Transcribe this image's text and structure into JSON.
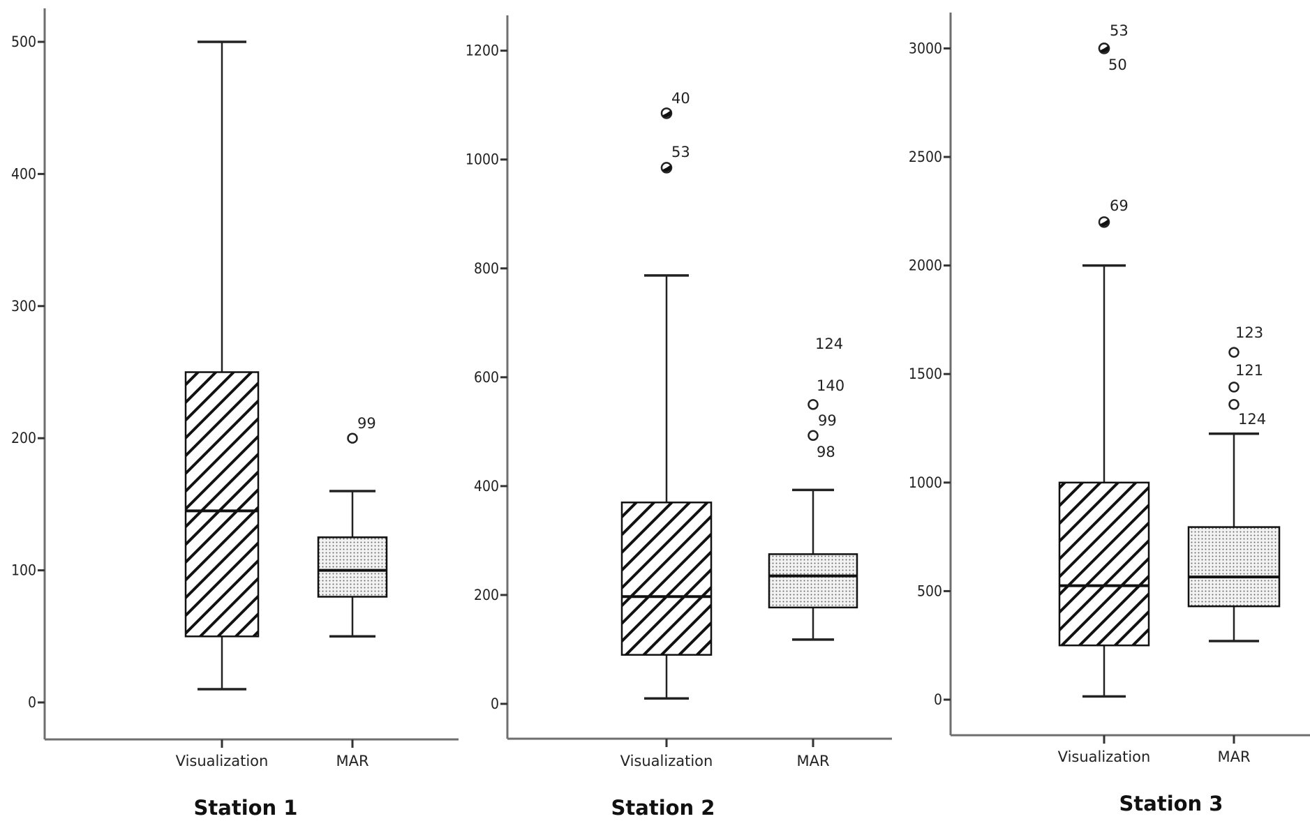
{
  "figure": {
    "panels": [
      {
        "title": "Station 1",
        "categories": [
          "Visualization",
          "MAR"
        ]
      },
      {
        "title": "Station 2",
        "categories": [
          "Visualization",
          "MAR"
        ]
      },
      {
        "title": "Station 3",
        "categories": [
          "Visualization",
          "MAR"
        ]
      }
    ]
  },
  "chart_data": [
    {
      "type": "boxplot",
      "title": "Station 1",
      "xlabel": "",
      "ylabel": "",
      "categories": [
        "Visualization",
        "MAR"
      ],
      "yticks": [
        0,
        100,
        200,
        300,
        400,
        500
      ],
      "ylim": [
        -30,
        530
      ],
      "grid": false,
      "series": [
        {
          "name": "Visualization",
          "fill": "diagonal-hatch",
          "whisker_low": 10,
          "q1": 50,
          "median": 145,
          "q3": 250,
          "whisker_high": 500,
          "outliers": []
        },
        {
          "name": "MAR",
          "fill": "dotted",
          "whisker_low": 50,
          "q1": 80,
          "median": 100,
          "q3": 125,
          "whisker_high": 160,
          "outliers": [
            {
              "value": 200,
              "label": "99",
              "style": "open"
            }
          ]
        }
      ]
    },
    {
      "type": "boxplot",
      "title": "Station 2",
      "xlabel": "",
      "ylabel": "",
      "categories": [
        "Visualization",
        "MAR"
      ],
      "yticks": [
        0,
        200,
        400,
        600,
        800,
        1000,
        1200
      ],
      "ylim": [
        -65,
        1260
      ],
      "grid": false,
      "series": [
        {
          "name": "Visualization",
          "fill": "diagonal-hatch",
          "whisker_low": 10,
          "q1": 90,
          "median": 197,
          "q3": 370,
          "whisker_high": 787,
          "outliers": [
            {
              "value": 1085,
              "label": "40",
              "style": "extreme"
            },
            {
              "value": 985,
              "label": "53",
              "style": "extreme"
            }
          ]
        },
        {
          "name": "MAR",
          "fill": "dotted",
          "whisker_low": 118,
          "q1": 177,
          "median": 235,
          "q3": 275,
          "whisker_high": 393,
          "outliers": [
            {
              "value": 550,
              "label": "140",
              "style": "open"
            },
            {
              "value": 493,
              "label": "99",
              "style": "open"
            },
            {
              "value": null,
              "label": "124",
              "style": "label-only"
            },
            {
              "value": null,
              "label": "98",
              "style": "label-only"
            }
          ]
        }
      ]
    },
    {
      "type": "boxplot",
      "title": "Station 3",
      "xlabel": "",
      "ylabel": "",
      "categories": [
        "Visualization",
        "MAR"
      ],
      "yticks": [
        0,
        500,
        1000,
        1500,
        2000,
        2500,
        3000
      ],
      "ylim": [
        -170,
        3170
      ],
      "grid": false,
      "series": [
        {
          "name": "Visualization",
          "fill": "diagonal-hatch",
          "whisker_low": 15,
          "q1": 250,
          "median": 525,
          "q3": 1000,
          "whisker_high": 2000,
          "outliers": [
            {
              "value": 3000,
              "label": "53",
              "style": "extreme"
            },
            {
              "value": 3000,
              "label": "50",
              "style": "extreme"
            },
            {
              "value": 2200,
              "label": "69",
              "style": "extreme"
            }
          ]
        },
        {
          "name": "MAR",
          "fill": "dotted",
          "whisker_low": 270,
          "q1": 430,
          "median": 565,
          "q3": 795,
          "whisker_high": 1225,
          "outliers": [
            {
              "value": 1600,
              "label": "123",
              "style": "open"
            },
            {
              "value": 1440,
              "label": "121",
              "style": "open"
            },
            {
              "value": 1360,
              "label": "124",
              "style": "open"
            }
          ]
        }
      ]
    }
  ]
}
